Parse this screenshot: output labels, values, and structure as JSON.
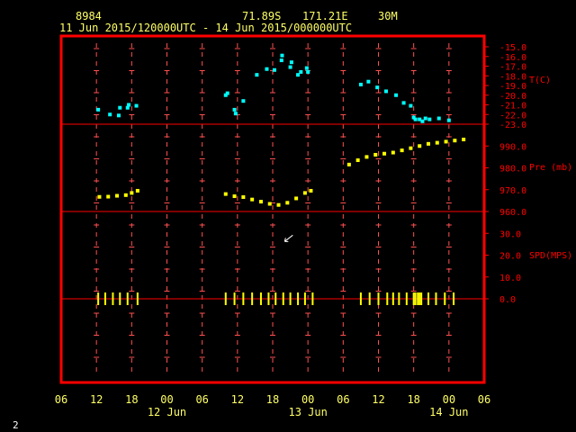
{
  "header": {
    "station_id": "8984",
    "latitude": "71.89S",
    "longitude": "171.21E",
    "elevation": "30M",
    "date_range": "11 Jun 2015/120000UTC - 14 Jun 2015/000000UTC"
  },
  "page_number": "2",
  "colors": {
    "frame": "#ff0000",
    "text": "#ffff66",
    "temperature": "#00ffff",
    "pressure": "#ffff00",
    "wind": "#ffff00",
    "grid": "#ff5050"
  },
  "chart_data": {
    "type": "scatter",
    "x_ticks": [
      "06",
      "12",
      "18",
      "00",
      "06",
      "12",
      "18",
      "00",
      "06",
      "12",
      "18",
      "00",
      "06"
    ],
    "x_tick_hours": [
      6,
      12,
      18,
      24,
      30,
      36,
      42,
      48,
      54,
      60,
      66,
      72,
      78
    ],
    "date_labels": [
      {
        "label": "12 Jun",
        "hour": 24
      },
      {
        "label": "13 Jun",
        "hour": 48
      },
      {
        "label": "14 Jun",
        "hour": 72
      }
    ],
    "x_range_hours": [
      6,
      78
    ],
    "panels": [
      {
        "name": "temperature",
        "label": "T(C)",
        "ylim": [
          -23.0,
          -14.0
        ],
        "ticks": [
          "-15.0",
          "-16.0",
          "-17.0",
          "-18.0",
          "-19.0",
          "-20.0",
          "-21.0",
          "-22.0",
          "-23.0"
        ],
        "tick_values": [
          -15,
          -16,
          -17,
          -18,
          -19,
          -20,
          -21,
          -22,
          -23
        ],
        "points": [
          {
            "x": 12.3,
            "y": -21.5
          },
          {
            "x": 14.3,
            "y": -22.0
          },
          {
            "x": 15.8,
            "y": -22.1
          },
          {
            "x": 16.0,
            "y": -21.3
          },
          {
            "x": 17.3,
            "y": -21.3
          },
          {
            "x": 17.5,
            "y": -21.0
          },
          {
            "x": 18.8,
            "y": -21.1
          },
          {
            "x": 34.0,
            "y": -20.0
          },
          {
            "x": 34.3,
            "y": -19.8
          },
          {
            "x": 35.5,
            "y": -21.5
          },
          {
            "x": 35.7,
            "y": -21.9
          },
          {
            "x": 37.0,
            "y": -20.6
          },
          {
            "x": 39.3,
            "y": -17.9
          },
          {
            "x": 41.0,
            "y": -17.3
          },
          {
            "x": 42.3,
            "y": -17.4
          },
          {
            "x": 43.5,
            "y": -16.4
          },
          {
            "x": 43.6,
            "y": -15.9
          },
          {
            "x": 45.0,
            "y": -17.1
          },
          {
            "x": 45.2,
            "y": -16.6
          },
          {
            "x": 46.3,
            "y": -17.9
          },
          {
            "x": 46.8,
            "y": -17.6
          },
          {
            "x": 47.8,
            "y": -17.2
          },
          {
            "x": 48.0,
            "y": -17.6
          },
          {
            "x": 57.0,
            "y": -18.9
          },
          {
            "x": 58.3,
            "y": -18.6
          },
          {
            "x": 59.8,
            "y": -19.2
          },
          {
            "x": 61.3,
            "y": -19.6
          },
          {
            "x": 63.0,
            "y": -20.0
          },
          {
            "x": 64.3,
            "y": -20.8
          },
          {
            "x": 65.5,
            "y": -21.1
          },
          {
            "x": 66.0,
            "y": -22.3
          },
          {
            "x": 66.3,
            "y": -22.5
          },
          {
            "x": 67.0,
            "y": -22.5
          },
          {
            "x": 67.5,
            "y": -22.7
          },
          {
            "x": 68.0,
            "y": -22.4
          },
          {
            "x": 68.7,
            "y": -22.5
          },
          {
            "x": 70.3,
            "y": -22.4
          },
          {
            "x": 72.0,
            "y": -22.6
          }
        ]
      },
      {
        "name": "pressure",
        "label": "Pre (mb)",
        "ylim": [
          960.0,
          1000.0
        ],
        "ticks": [
          "990.0",
          "980.0",
          "970.0",
          "960.0"
        ],
        "tick_values": [
          990,
          980,
          970,
          960
        ],
        "points": [
          {
            "x": 12.5,
            "y": 966.7
          },
          {
            "x": 14.0,
            "y": 966.8
          },
          {
            "x": 15.5,
            "y": 967.2
          },
          {
            "x": 17.0,
            "y": 967.5
          },
          {
            "x": 18.0,
            "y": 968.5
          },
          {
            "x": 19.0,
            "y": 969.5
          },
          {
            "x": 34.0,
            "y": 968.0
          },
          {
            "x": 35.5,
            "y": 967.0
          },
          {
            "x": 37.0,
            "y": 966.6
          },
          {
            "x": 38.5,
            "y": 965.5
          },
          {
            "x": 40.0,
            "y": 964.5
          },
          {
            "x": 41.5,
            "y": 963.5
          },
          {
            "x": 43.0,
            "y": 963.0
          },
          {
            "x": 44.5,
            "y": 964.0
          },
          {
            "x": 46.0,
            "y": 966.0
          },
          {
            "x": 47.5,
            "y": 968.5
          },
          {
            "x": 48.5,
            "y": 969.5
          },
          {
            "x": 55.0,
            "y": 981.5
          },
          {
            "x": 56.5,
            "y": 983.5
          },
          {
            "x": 58.0,
            "y": 985.0
          },
          {
            "x": 59.5,
            "y": 986.0
          },
          {
            "x": 61.0,
            "y": 986.5
          },
          {
            "x": 62.5,
            "y": 987.0
          },
          {
            "x": 64.0,
            "y": 988.0
          },
          {
            "x": 65.5,
            "y": 989.0
          },
          {
            "x": 67.0,
            "y": 990.0
          },
          {
            "x": 68.5,
            "y": 991.0
          },
          {
            "x": 70.0,
            "y": 991.5
          },
          {
            "x": 71.5,
            "y": 992.0
          },
          {
            "x": 73.0,
            "y": 992.5
          },
          {
            "x": 74.5,
            "y": 993.0
          }
        ]
      },
      {
        "name": "wind",
        "label": "SPD(MPS)",
        "ylim": [
          0.0,
          40.0
        ],
        "ticks": [
          "30.0",
          "20.0",
          "10.0",
          "0.0"
        ],
        "tick_values": [
          30,
          20,
          10,
          0
        ],
        "points": [
          {
            "x": 44.5,
            "y": 27.5
          }
        ],
        "observation_hours": [
          12.3,
          13.5,
          14.8,
          16.0,
          17.3,
          19.0,
          34.0,
          35.5,
          37.0,
          38.5,
          40.0,
          41.3,
          42.5,
          43.8,
          45.0,
          46.3,
          47.5,
          48.8,
          57.0,
          58.5,
          60.0,
          61.5,
          62.5,
          63.5,
          64.8,
          66.0,
          66.3,
          66.7,
          67.0,
          67.3,
          68.5,
          69.8,
          71.3,
          72.8
        ]
      }
    ]
  }
}
